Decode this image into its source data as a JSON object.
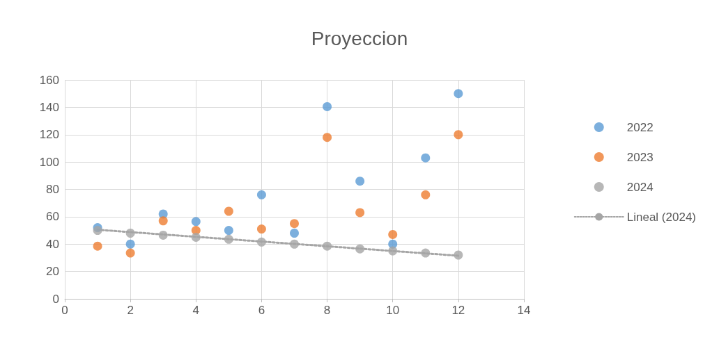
{
  "chart_data": {
    "type": "scatter",
    "title": "Proyeccion",
    "xlim": [
      0,
      14
    ],
    "xticks": [
      0,
      2,
      4,
      6,
      8,
      10,
      12,
      14
    ],
    "ylim": [
      0,
      160
    ],
    "yticks": [
      0,
      20,
      40,
      60,
      80,
      100,
      120,
      140,
      160
    ],
    "grid": true,
    "legend": "right",
    "marker": "circle",
    "x": [
      1,
      2,
      3,
      4,
      5,
      6,
      7,
      8,
      9,
      10,
      11,
      12
    ],
    "series": [
      {
        "name": "2022",
        "color": "#5b9bd5",
        "values": [
          52,
          40,
          62,
          56.5,
          50,
          76,
          48,
          140.5,
          86,
          40,
          103,
          150
        ]
      },
      {
        "name": "2023",
        "color": "#ed7d31",
        "values": [
          38.5,
          33.5,
          57,
          50,
          64,
          51,
          55,
          118,
          63,
          47,
          76,
          120
        ]
      },
      {
        "name": "2024",
        "color": "#a5a5a5",
        "values": [
          50,
          48,
          46.5,
          45,
          43.5,
          41.5,
          40,
          38.5,
          36.5,
          35,
          33.5,
          32
        ]
      },
      {
        "name": "Lineal (2024)",
        "type": "line",
        "color": "#a5a5a5",
        "line_style": "dotted",
        "marker": "none",
        "x": [
          1,
          12
        ],
        "values": [
          50.5,
          31.5
        ]
      }
    ]
  }
}
